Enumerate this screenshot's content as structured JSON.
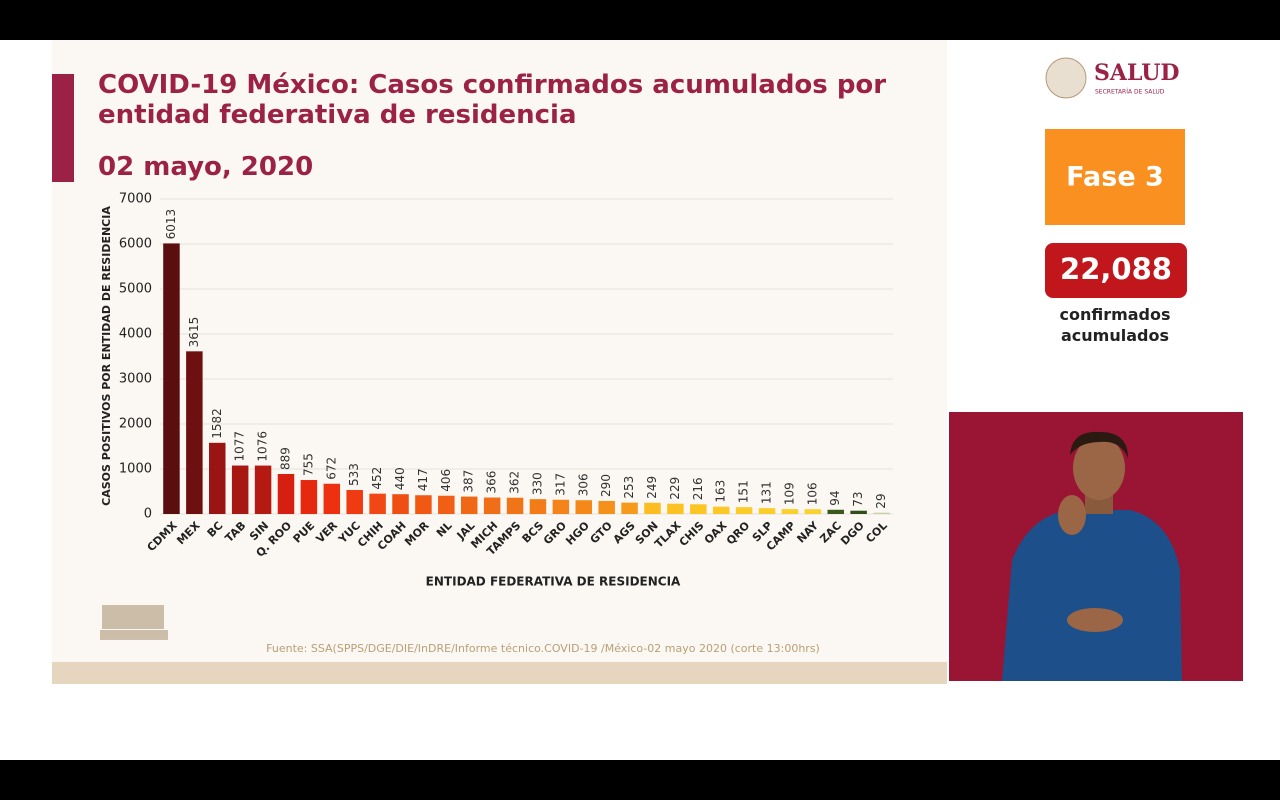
{
  "chart_data": {
    "type": "bar",
    "title": "COVID-19 México: Casos confirmados acumulados por entidad federativa de residencia",
    "subtitle": "02 mayo, 2020",
    "ylabel": "CASOS POSITIVOS POR ENTIDAD DE RESIDENCIA",
    "xlabel": "ENTIDAD FEDERATIVA DE RESIDENCIA",
    "source": "Fuente: SSA(SPPS/DGE/DIE/InDRE/Informe técnico.COVID-19 /México-02 mayo 2020 (corte 13:00hrs)",
    "categories": [
      "CDMX",
      "MEX",
      "BC",
      "TAB",
      "SIN",
      "Q. ROO",
      "PUE",
      "VER",
      "YUC",
      "CHIH",
      "COAH",
      "MOR",
      "NL",
      "JAL",
      "MICH",
      "TAMPS",
      "BCS",
      "GRO",
      "HGO",
      "GTO",
      "AGS",
      "SON",
      "TLAX",
      "CHIS",
      "OAX",
      "QRO",
      "SLP",
      "CAMP",
      "NAY",
      "ZAC",
      "DGO",
      "COL"
    ],
    "values": [
      6013,
      3615,
      1582,
      1077,
      1076,
      889,
      755,
      672,
      533,
      452,
      440,
      417,
      406,
      387,
      366,
      362,
      330,
      317,
      306,
      290,
      253,
      249,
      229,
      216,
      163,
      151,
      131,
      109,
      106,
      94,
      73,
      29
    ],
    "colors": [
      "#5a0e0e",
      "#6e1010",
      "#9a1414",
      "#a81812",
      "#b51a12",
      "#d61f10",
      "#e6280f",
      "#ec3010",
      "#f03a12",
      "#f04714",
      "#f04f14",
      "#f05814",
      "#f05f15",
      "#f06716",
      "#f06e17",
      "#f07418",
      "#f27c18",
      "#f3831a",
      "#f4891a",
      "#f5901b",
      "#f69a1c",
      "#fbbd22",
      "#fbc222",
      "#fbc524",
      "#fbc826",
      "#fbcb28",
      "#fbcd2a",
      "#fbcf2c",
      "#fbd12e",
      "#3b5a1a",
      "#2f4e18",
      "#c9d1a3"
    ],
    "ylim": [
      0,
      7000
    ],
    "yticks": [
      0,
      1000,
      2000,
      3000,
      4000,
      5000,
      6000,
      7000
    ],
    "grid": true
  },
  "logo": {
    "name": "SALUD",
    "subtitle": "SECRETARÍA DE SALUD"
  },
  "panel": {
    "phase": "Fase 3",
    "total": "22,088",
    "total_caption": "confirmados acumulados"
  }
}
